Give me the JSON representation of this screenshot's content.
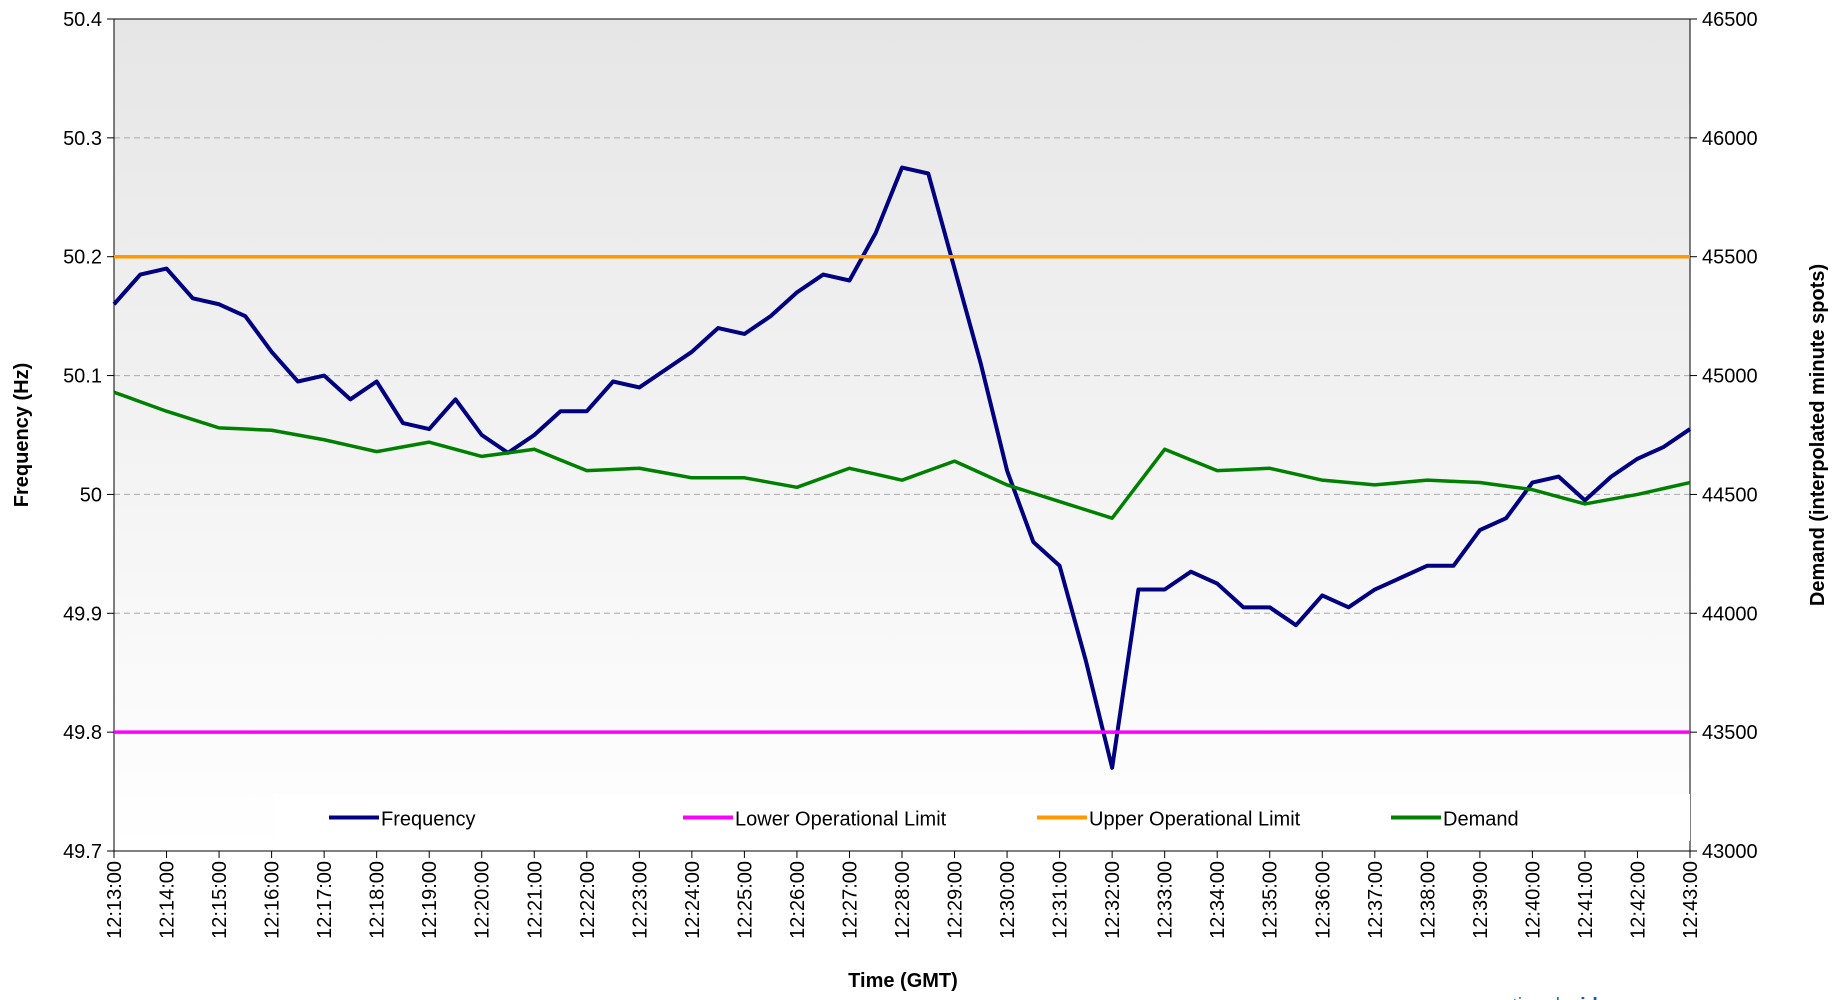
{
  "chart_data": {
    "type": "line",
    "x_label": "Time (GMT)",
    "y_label": "Frequency (Hz)",
    "y2_label": "Demand (interpolated minute spots)",
    "categories": [
      "12:13:00",
      null,
      "12:14:00",
      null,
      "12:15:00",
      null,
      "12:16:00",
      null,
      "12:17:00",
      null,
      "12:18:00",
      null,
      "12:19:00",
      null,
      "12:20:00",
      null,
      "12:21:00",
      null,
      "12:22:00",
      null,
      "12:23:00",
      null,
      "12:24:00",
      null,
      "12:25:00",
      null,
      "12:26:00",
      null,
      "12:27:00",
      null,
      "12:28:00",
      null,
      "12:29:00",
      null,
      "12:30:00",
      null,
      "12:31:00",
      null,
      "12:32:00",
      null,
      "12:33:00",
      null,
      "12:34:00",
      null,
      "12:35:00",
      null,
      "12:36:00",
      null,
      "12:37:00",
      null,
      "12:38:00",
      null,
      "12:39:00",
      null,
      "12:40:00",
      null,
      "12:41:00",
      null,
      "12:42:00",
      null,
      "12:43:00"
    ],
    "ylim": [
      49.7,
      50.4
    ],
    "yticks": [
      49.7,
      49.8,
      49.9,
      50,
      50.1,
      50.2,
      50.3,
      50.4
    ],
    "y2lim": [
      43000,
      46500
    ],
    "y2ticks": [
      43000,
      43500,
      44000,
      44500,
      45000,
      45500,
      46000,
      46500
    ],
    "grid": true,
    "legend": "bottom",
    "series": [
      {
        "name": "Frequency",
        "color": "#000080",
        "values": [
          50.16,
          50.185,
          50.19,
          50.165,
          50.16,
          50.15,
          50.12,
          50.095,
          50.1,
          50.08,
          50.095,
          50.06,
          50.055,
          50.08,
          50.05,
          50.035,
          50.05,
          50.07,
          50.07,
          50.095,
          50.09,
          50.105,
          50.12,
          50.14,
          50.135,
          50.15,
          50.17,
          50.185,
          50.18,
          50.22,
          50.275,
          50.27,
          50.19,
          50.11,
          50.02,
          49.96,
          49.94,
          49.86,
          49.77,
          49.92,
          49.92,
          49.935,
          49.925,
          49.905,
          49.905,
          49.89,
          49.915,
          49.905,
          49.92,
          49.93,
          49.94,
          49.94,
          49.97,
          49.98,
          50.01,
          50.015,
          49.995,
          50.015,
          50.03,
          50.04,
          50.055
        ]
      },
      {
        "name": "Lower Operational Limit",
        "color": "#ff00ff",
        "values": [
          49.8,
          49.8,
          49.8,
          49.8,
          49.8,
          49.8,
          49.8,
          49.8,
          49.8,
          49.8,
          49.8,
          49.8,
          49.8,
          49.8,
          49.8,
          49.8,
          49.8,
          49.8,
          49.8,
          49.8,
          49.8,
          49.8,
          49.8,
          49.8,
          49.8,
          49.8,
          49.8,
          49.8,
          49.8,
          49.8,
          49.8,
          49.8,
          49.8,
          49.8,
          49.8,
          49.8,
          49.8,
          49.8,
          49.8,
          49.8,
          49.8,
          49.8,
          49.8,
          49.8,
          49.8,
          49.8,
          49.8,
          49.8,
          49.8,
          49.8,
          49.8,
          49.8,
          49.8,
          49.8,
          49.8,
          49.8,
          49.8,
          49.8,
          49.8,
          49.8,
          49.8
        ]
      },
      {
        "name": "Upper Operational Limit",
        "color": "#ff9900",
        "values": [
          50.2,
          50.2,
          50.2,
          50.2,
          50.2,
          50.2,
          50.2,
          50.2,
          50.2,
          50.2,
          50.2,
          50.2,
          50.2,
          50.2,
          50.2,
          50.2,
          50.2,
          50.2,
          50.2,
          50.2,
          50.2,
          50.2,
          50.2,
          50.2,
          50.2,
          50.2,
          50.2,
          50.2,
          50.2,
          50.2,
          50.2,
          50.2,
          50.2,
          50.2,
          50.2,
          50.2,
          50.2,
          50.2,
          50.2,
          50.2,
          50.2,
          50.2,
          50.2,
          50.2,
          50.2,
          50.2,
          50.2,
          50.2,
          50.2,
          50.2,
          50.2,
          50.2,
          50.2,
          50.2,
          50.2,
          50.2,
          50.2,
          50.2,
          50.2,
          50.2,
          50.2
        ]
      },
      {
        "name": "Demand",
        "color": "#008000",
        "axis": "y2",
        "values": [
          44930,
          44890,
          44850,
          44815,
          44780,
          44775,
          44770,
          44750,
          44730,
          44705,
          44680,
          44700,
          44720,
          44690,
          44660,
          44675,
          44690,
          44645,
          44600,
          44605,
          44610,
          44590,
          44570,
          44570,
          44570,
          44550,
          44530,
          44570,
          44610,
          44585,
          44560,
          44600,
          44640,
          44590,
          44540,
          44505,
          44470,
          44435,
          44400,
          44545,
          44690,
          44645,
          44600,
          44605,
          44610,
          44585,
          44560,
          44550,
          44540,
          44550,
          44560,
          44555,
          44550,
          44535,
          44520,
          44490,
          44460,
          44480,
          44500,
          44525,
          44550
        ]
      }
    ]
  },
  "logo": {
    "light": "national",
    "bold": "grid"
  }
}
